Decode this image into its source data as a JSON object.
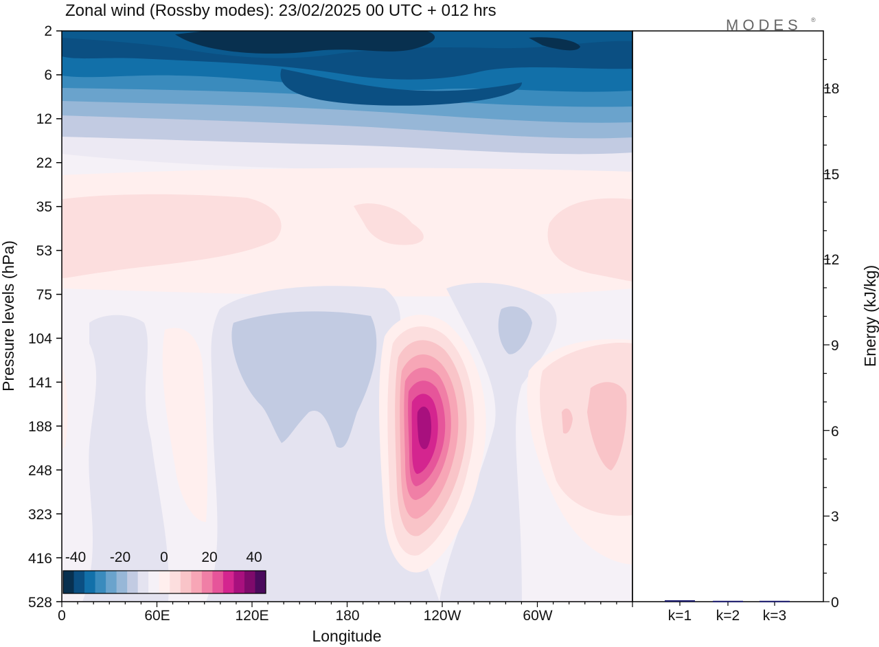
{
  "chart_data": {
    "type": "heatmap",
    "title": "Zonal wind (Rossby modes):  23/02/2025  00 UTC  + 012 hrs",
    "xlabel": "Longitude",
    "ylabel": "Pressure levels (hPa)",
    "y2label": "Energy (kJ/kg)",
    "x_ticks": [
      "0",
      "60E",
      "120E",
      "180",
      "120W",
      "60W"
    ],
    "y_ticks": [
      "2",
      "6",
      "12",
      "22",
      "35",
      "53",
      "75",
      "104",
      "141",
      "188",
      "248",
      "323",
      "416",
      "528"
    ],
    "y2_ticks": [
      "0",
      "3",
      "6",
      "9",
      "12",
      "15",
      "18"
    ],
    "y2lim": [
      0,
      20
    ],
    "colorbar": {
      "ticks": [
        "-40",
        "-20",
        "0",
        "20",
        "40"
      ],
      "range": [
        -50,
        50
      ],
      "colors": [
        "#08304f",
        "#0b4f82",
        "#1270a9",
        "#3a8bbd",
        "#6aa3cc",
        "#97b7d7",
        "#c2cbe2",
        "#e4e3f0",
        "#f5f1f7",
        "#ffefee",
        "#fcdede",
        "#f9c4c8",
        "#f7a6b6",
        "#f07fa6",
        "#e6559a",
        "#d4258f",
        "#a8107e",
        "#7e0a6b",
        "#4a0a5c"
      ]
    },
    "energy_bars": {
      "categories": [
        "k=1",
        "k=2",
        "k=3"
      ],
      "values": [
        0.05,
        0.03,
        0.03
      ],
      "color": "#1a1a6e"
    }
  },
  "branding": {
    "logo": "MODES",
    "logo_mark": "®"
  }
}
